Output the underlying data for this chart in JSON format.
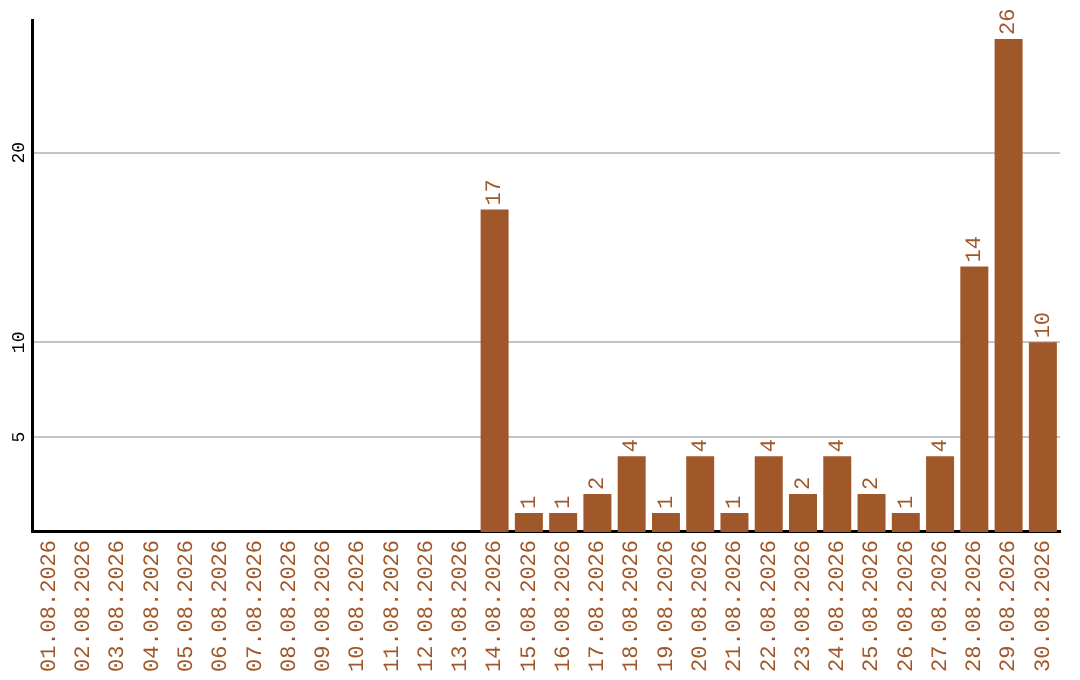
{
  "chart_data": {
    "type": "bar",
    "categories": [
      "01.08.2026",
      "02.08.2026",
      "03.08.2026",
      "04.08.2026",
      "05.08.2026",
      "06.08.2026",
      "07.08.2026",
      "08.08.2026",
      "09.08.2026",
      "10.08.2026",
      "11.08.2026",
      "12.08.2026",
      "13.08.2026",
      "14.08.2026",
      "15.08.2026",
      "16.08.2026",
      "17.08.2026",
      "18.08.2026",
      "19.08.2026",
      "20.08.2026",
      "21.08.2026",
      "22.08.2026",
      "23.08.2026",
      "24.08.2026",
      "25.08.2026",
      "26.08.2026",
      "27.08.2026",
      "28.08.2026",
      "29.08.2026",
      "30.08.2026"
    ],
    "values": [
      0,
      0,
      0,
      0,
      0,
      0,
      0,
      0,
      0,
      0,
      0,
      0,
      0,
      17,
      1,
      1,
      2,
      4,
      1,
      4,
      1,
      4,
      2,
      4,
      2,
      1,
      4,
      14,
      26,
      10
    ],
    "value_labels": [
      null,
      null,
      null,
      null,
      null,
      null,
      null,
      null,
      null,
      null,
      null,
      null,
      null,
      "17",
      "1",
      "1",
      "2",
      "4",
      "1",
      "4",
      "1",
      "4",
      "2",
      "4",
      "2",
      "1",
      "4",
      "14",
      "26",
      "10"
    ],
    "color": "#a0582a",
    "ylim": [
      0,
      27
    ],
    "yticks": [
      5,
      10,
      20
    ],
    "grid": "y"
  }
}
